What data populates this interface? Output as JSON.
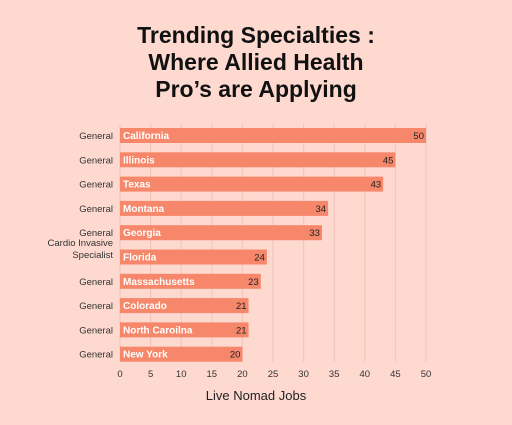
{
  "chart_data": {
    "type": "bar",
    "orientation": "horizontal",
    "title": [
      "Trending Specialties :",
      "Where Allied Health",
      "Pro’s are Applying"
    ],
    "source": "Live Nomad Jobs",
    "xlim": [
      0,
      50
    ],
    "xticks": [
      0,
      5,
      10,
      15,
      20,
      25,
      30,
      35,
      40,
      45,
      50
    ],
    "grid": true,
    "bar_color": "#f6876a",
    "rows": [
      {
        "category": [
          "General"
        ],
        "state": "California",
        "value": 50
      },
      {
        "category": [
          "General"
        ],
        "state": "Illinois",
        "value": 45
      },
      {
        "category": [
          "General"
        ],
        "state": "Texas",
        "value": 43
      },
      {
        "category": [
          "General"
        ],
        "state": "Montana",
        "value": 34
      },
      {
        "category": [
          "General"
        ],
        "state": "Georgia",
        "value": 33
      },
      {
        "category": [
          "Cardio Invasive",
          "Specialist"
        ],
        "state": "Florida",
        "value": 24
      },
      {
        "category": [
          "General"
        ],
        "state": "Massachusetts",
        "value": 23
      },
      {
        "category": [
          "General"
        ],
        "state": "Colorado",
        "value": 21
      },
      {
        "category": [
          "General"
        ],
        "state": "North Caroilna",
        "value": 21
      },
      {
        "category": [
          "General"
        ],
        "state": "New York",
        "value": 20
      }
    ]
  }
}
